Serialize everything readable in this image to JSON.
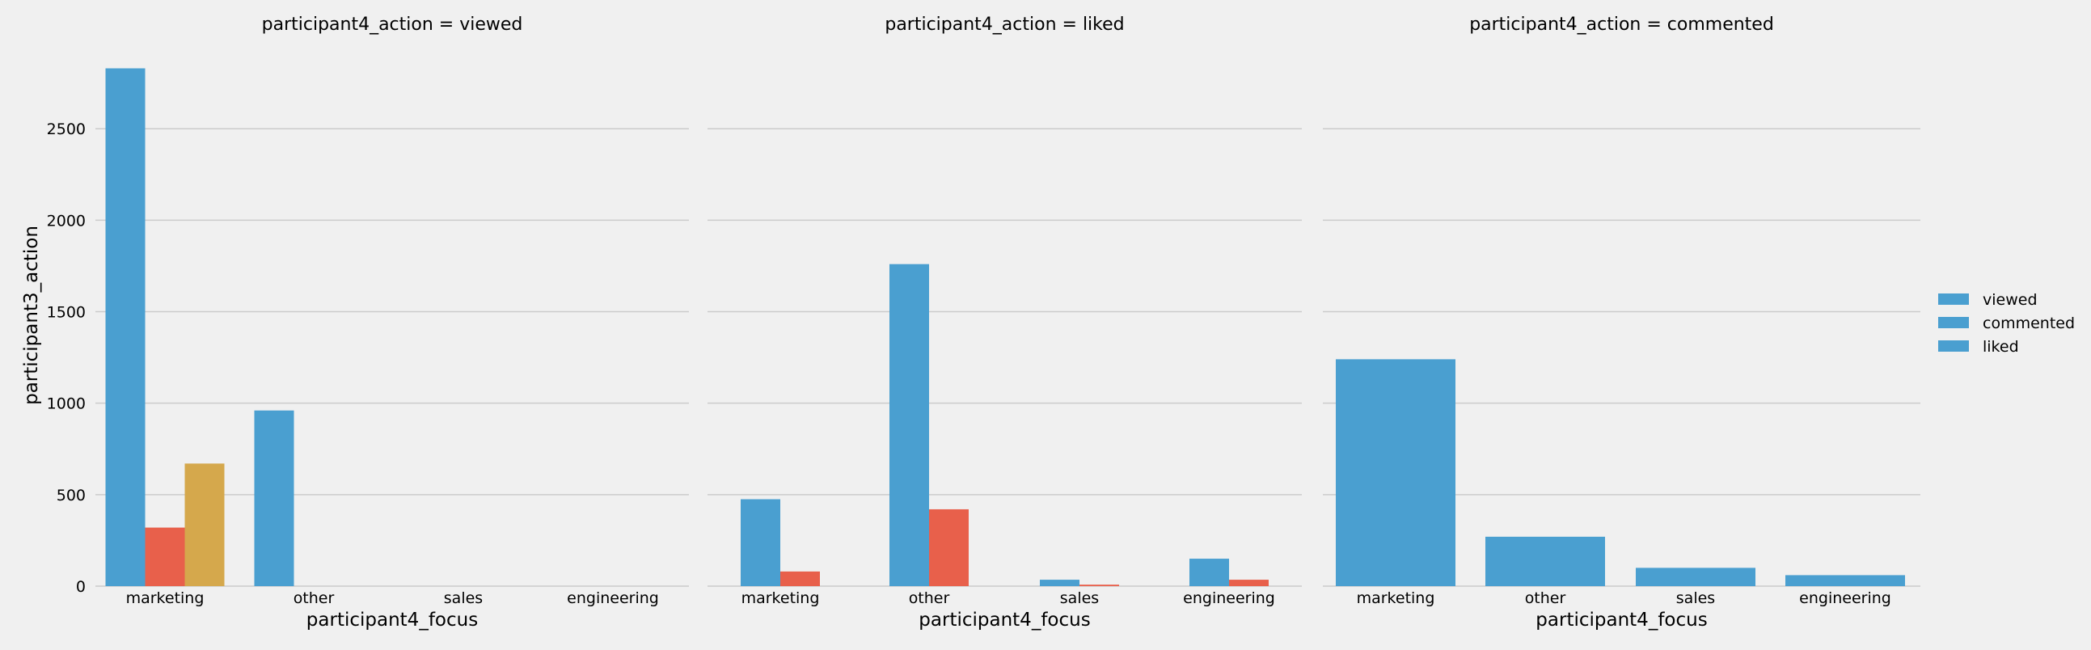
{
  "chart_data": {
    "type": "bar",
    "ylabel": "participant3_action",
    "xlabel": "participant4_focus",
    "ylim": [
      0,
      2850
    ],
    "yticks": [
      0,
      500,
      1000,
      1500,
      2000,
      2500
    ],
    "categories": [
      "marketing",
      "other",
      "sales",
      "engineering"
    ],
    "legend": {
      "placement": "right",
      "entries": [
        "viewed",
        "commented",
        "liked"
      ],
      "colors": [
        "#4a9fd0",
        "#4a9fd0",
        "#4a9fd0"
      ]
    },
    "panels": [
      {
        "title": "participant4_action = viewed",
        "series": [
          {
            "color": "#4a9fd0",
            "values": [
              2830,
              960,
              0,
              0
            ]
          },
          {
            "color": "#e8604b",
            "values": [
              320,
              0,
              0,
              0
            ]
          },
          {
            "color": "#d5a84c",
            "values": [
              670,
              0,
              0,
              0
            ]
          }
        ]
      },
      {
        "title": "participant4_action = liked",
        "series": [
          {
            "color": "#4a9fd0",
            "values": [
              475,
              1760,
              35,
              150
            ]
          },
          {
            "color": "#e8604b",
            "values": [
              80,
              420,
              8,
              35
            ]
          }
        ]
      },
      {
        "title": "participant4_action = commented",
        "series": [
          {
            "color": "#4a9fd0",
            "values": [
              1240,
              270,
              100,
              60
            ]
          }
        ]
      }
    ]
  }
}
